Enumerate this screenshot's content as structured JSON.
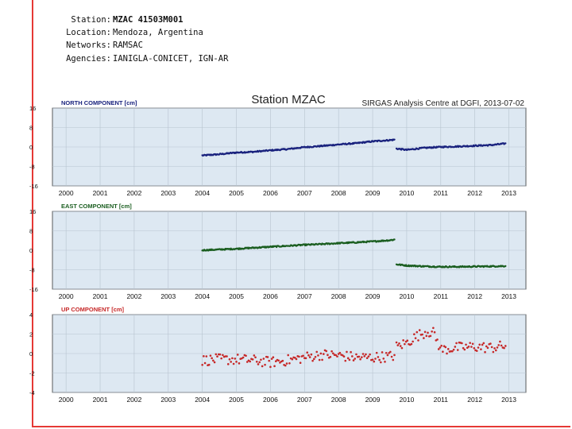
{
  "meta": {
    "station_label": "Station:",
    "station_value": "MZAC 41503M001",
    "location_label": "Location:",
    "location_value": "Mendoza, Argentina",
    "networks_label": "Networks:",
    "networks_value": "RAMSAC",
    "agencies_label": "Agencies:",
    "agencies_value": "IANIGLA-CONICET, IGN-AR"
  },
  "chart_data": {
    "type": "scatter",
    "title": "Station MZAC",
    "subtitle": "SIRGAS Analysis Centre at DGFI, 2013-07-02",
    "x_ticks": [
      "2000",
      "2001",
      "2002",
      "2003",
      "2004",
      "2005",
      "2006",
      "2007",
      "2008",
      "2009",
      "2010",
      "2011",
      "2012",
      "2013"
    ],
    "xlim": [
      1999.6,
      2013.5
    ],
    "grid": true,
    "panels": [
      {
        "label": "NORTH COMPONENT [cm]",
        "color": "#1a237e",
        "ylim": [
          -16,
          16
        ],
        "y_ticks": [
          16,
          8,
          0,
          -8,
          -16
        ],
        "y_tick_labels": [
          "16",
          "8",
          "0",
          "-8",
          "-16"
        ],
        "series": [
          {
            "x": [
              2004.0,
              2004.5,
              2005.0,
              2005.5,
              2006.0,
              2006.5,
              2007.0,
              2007.5,
              2008.0,
              2008.5,
              2009.0,
              2009.5,
              2009.65
            ],
            "y": [
              -3.5,
              -3.0,
              -2.3,
              -2.0,
              -1.4,
              -0.9,
              -0.1,
              0.4,
              1.0,
              1.5,
              2.3,
              2.8,
              3.0
            ]
          },
          {
            "x": [
              2009.7,
              2010.0,
              2010.5,
              2011.0,
              2011.5,
              2012.0,
              2012.5,
              2012.9
            ],
            "y": [
              -0.7,
              -1.2,
              -0.4,
              0.0,
              0.2,
              0.5,
              0.8,
              1.4
            ]
          }
        ]
      },
      {
        "label": "EAST COMPONENT [cm]",
        "color": "#1b5e20",
        "ylim": [
          -16,
          16
        ],
        "y_ticks": [
          16,
          8,
          0,
          -8,
          -16
        ],
        "y_tick_labels": [
          "16",
          "8",
          "0",
          "-8",
          "-16"
        ],
        "series": [
          {
            "x": [
              2004.0,
              2004.5,
              2005.0,
              2005.5,
              2006.0,
              2006.5,
              2007.0,
              2007.5,
              2008.0,
              2008.5,
              2009.0,
              2009.5,
              2009.65
            ],
            "y": [
              0.0,
              0.3,
              0.6,
              1.0,
              1.4,
              1.8,
              2.2,
              2.5,
              2.9,
              3.2,
              3.6,
              4.1,
              4.4
            ]
          },
          {
            "x": [
              2009.7,
              2010.0,
              2010.5,
              2011.0,
              2011.5,
              2012.0,
              2012.5,
              2012.9
            ],
            "y": [
              -5.8,
              -6.3,
              -6.6,
              -6.8,
              -6.8,
              -6.7,
              -6.6,
              -6.5
            ]
          }
        ]
      },
      {
        "label": "UP COMPONENT [cm]",
        "color": "#c62828",
        "ylim": [
          -4,
          4
        ],
        "y_ticks": [
          4,
          2,
          0,
          -2,
          -4
        ],
        "y_tick_labels": [
          "4",
          "2",
          "0",
          "-2",
          "-4"
        ],
        "series": [
          {
            "x": [
              2004.0,
              2004.5,
              2005.0,
              2005.5,
              2006.0,
              2006.5,
              2007.0,
              2007.5,
              2008.0,
              2008.5,
              2009.0,
              2009.5,
              2009.65
            ],
            "y": [
              -0.7,
              -0.6,
              -0.6,
              -0.7,
              -0.9,
              -0.7,
              -0.4,
              -0.1,
              -0.2,
              -0.4,
              -0.4,
              -0.3,
              -0.2
            ]
          },
          {
            "x": [
              2009.7,
              2010.0,
              2010.3,
              2010.6,
              2010.8,
              2011.0,
              2011.5,
              2012.0,
              2012.5,
              2012.9
            ],
            "y": [
              0.7,
              1.1,
              1.8,
              2.3,
              2.1,
              0.4,
              0.6,
              0.7,
              0.6,
              0.8
            ]
          }
        ]
      }
    ]
  }
}
